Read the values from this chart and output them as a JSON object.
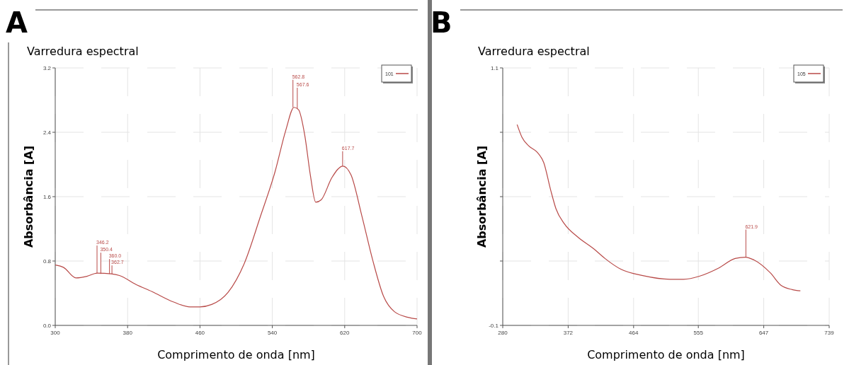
{
  "chart_data": [
    {
      "type": "line",
      "title": "Varredura espectral",
      "xlabel": "Comprimento de onda [nm]",
      "ylabel": "Absorbância [A]",
      "xlim": [
        300,
        700
      ],
      "xticks": [
        300,
        380,
        460,
        540,
        620,
        700
      ],
      "ylim": [
        0,
        3.2
      ],
      "yticks": [
        {
          "value": 0,
          "label": "0.0"
        },
        0.8,
        1.6,
        2.4,
        3.2
      ],
      "grid": true,
      "legend": "top right",
      "series": [
        {
          "name": "101",
          "color": "#b84a48",
          "x": [
            300,
            309.3,
            322.9,
            335,
            346.4,
            362,
            371,
            389,
            407,
            431,
            449,
            460,
            473,
            491,
            509,
            527,
            543,
            555,
            564,
            569,
            575.9,
            582,
            588,
            594,
            606,
            618,
            627,
            639,
            651,
            663,
            675,
            690,
            700
          ],
          "values": [
            0.75,
            0.72,
            0.59,
            0.61,
            0.65,
            0.64,
            0.62,
            0.51,
            0.42,
            0.29,
            0.23,
            0.23,
            0.26,
            0.41,
            0.77,
            1.36,
            1.91,
            2.43,
            2.71,
            2.68,
            2.36,
            1.87,
            1.53,
            1.56,
            1.84,
            1.98,
            1.87,
            1.36,
            0.81,
            0.36,
            0.17,
            0.1,
            0.08
          ]
        }
      ],
      "annotations": [
        "A",
        {
          "text": "346.2",
          "x": 346.2,
          "y": 0.65
        },
        {
          "text": "350.4",
          "x": 350.4,
          "y": 0.64
        },
        {
          "text": "360.0",
          "x": 360,
          "y": 0.64
        },
        {
          "text": "362.7",
          "x": 362.7,
          "y": 0.64
        },
        {
          "text": "562.8",
          "x": 562.8,
          "y": 2.71
        },
        {
          "text": "567.6",
          "x": 567.6,
          "y": 2.69
        },
        {
          "text": "617.7",
          "x": 617.7,
          "y": 1.98
        }
      ]
    },
    {
      "type": "line",
      "title": "Varredura espectral",
      "xlabel": "Comprimento de onda [nm]",
      "ylabel": "Absorbância [A]",
      "xlim": [
        280,
        739
      ],
      "xticks": [
        280,
        372,
        464,
        555,
        647,
        739
      ],
      "ylim": [
        -0.1,
        1.1
      ],
      "yticks": [
        -0.1,
        {
          "value": 0.2,
          "label": null
        },
        {
          "value": 0.5,
          "label": null
        },
        {
          "value": 0.8,
          "label": null
        },
        1.1
      ],
      "grid": true,
      "legend": "top right",
      "series": [
        {
          "name": "105",
          "color": "#b84a48",
          "x": [
            300.2,
            307,
            316.7,
            328.1,
            337.7,
            347.3,
            354.8,
            366.3,
            385.4,
            408.3,
            423.7,
            446.5,
            477,
            515.2,
            534.3,
            557.2,
            584,
            606.8,
            621.3,
            633.3,
            656.2,
            671.5,
            686.8,
            698.5
          ],
          "values": [
            0.836,
            0.777,
            0.736,
            0.708,
            0.658,
            0.532,
            0.444,
            0.375,
            0.312,
            0.256,
            0.212,
            0.161,
            0.132,
            0.115,
            0.115,
            0.13,
            0.168,
            0.212,
            0.218,
            0.205,
            0.145,
            0.086,
            0.067,
            0.061
          ]
        }
      ],
      "annotations": [
        "B",
        {
          "text": "621.9",
          "x": 621.9,
          "y": 0.218
        }
      ]
    }
  ]
}
